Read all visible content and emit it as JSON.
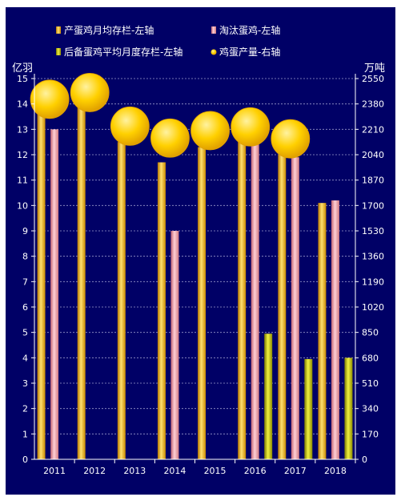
{
  "chart_data": {
    "type": "bar",
    "title": "",
    "categories": [
      "2011",
      "2012",
      "2013",
      "2014",
      "2015",
      "2016",
      "2017",
      "2018"
    ],
    "left_axis": {
      "unit_label": "亿羽",
      "ylim": [
        0,
        15
      ],
      "ticks": [
        0,
        1,
        2,
        3,
        4,
        5,
        6,
        7,
        8,
        9,
        10,
        11,
        12,
        13,
        14,
        15
      ]
    },
    "right_axis": {
      "unit_label": "万吨",
      "ylim": [
        0,
        2550
      ],
      "ticks": [
        0,
        170,
        340,
        510,
        680,
        850,
        1020,
        1190,
        1360,
        1530,
        1700,
        1870,
        2040,
        2210,
        2380,
        2550
      ]
    },
    "series": [
      {
        "name": "产蛋鸡月均存栏-左轴",
        "type": "bar",
        "axis": "left",
        "color": "#FFB800",
        "values": [
          14.1,
          14.5,
          12.5,
          11.7,
          12.3,
          12.5,
          12.0,
          10.1
        ]
      },
      {
        "name": "淘汰蛋鸡-左轴",
        "type": "bar",
        "axis": "left",
        "color": "#F4A0A8",
        "values": [
          13.0,
          null,
          null,
          9.0,
          null,
          12.4,
          11.9,
          10.2
        ]
      },
      {
        "name": "后备蛋鸡平均月度存栏-左轴",
        "type": "bar",
        "axis": "left",
        "color": "#C8C800",
        "values": [
          null,
          null,
          null,
          null,
          null,
          4.95,
          3.95,
          4.0
        ]
      },
      {
        "name": "鸡蛋产量-右轴",
        "type": "bubble",
        "axis": "right",
        "color": "#FFD700",
        "values": [
          2390,
          2435,
          2210,
          2130,
          2180,
          2205,
          2125,
          null
        ]
      }
    ],
    "grid": true,
    "legend_position": "top"
  }
}
